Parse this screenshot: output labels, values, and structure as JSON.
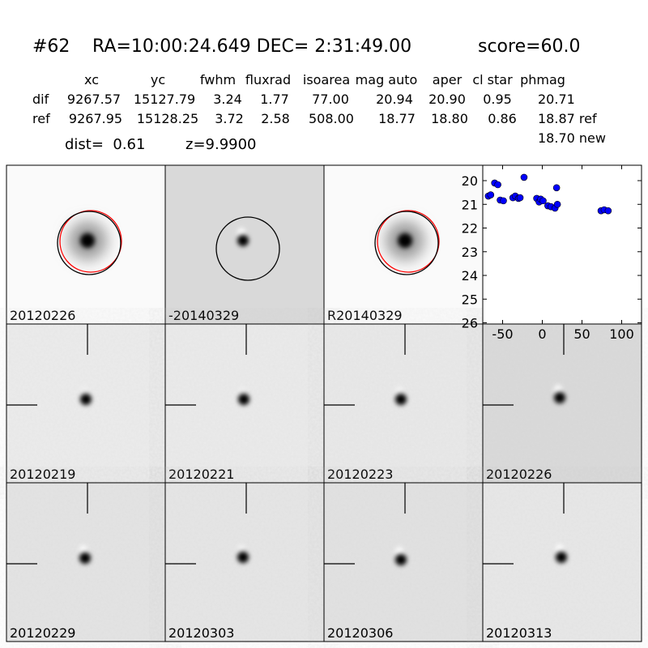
{
  "header": {
    "id": "#62",
    "coords": "RA=10:00:24.649 DEC= 2:31:49.00",
    "score": "score=60.0"
  },
  "table": {
    "columns": [
      "xc",
      "yc",
      "fwhm",
      "fluxrad",
      "isoarea",
      "mag auto",
      "aper",
      "cl star",
      "phmag"
    ],
    "rows": [
      [
        "dif",
        "9267.57",
        "15127.79",
        "3.24",
        "1.77",
        "77.00",
        "20.94",
        "20.90",
        "0.95",
        "20.71"
      ],
      [
        "ref",
        "9267.95",
        "15128.25",
        "3.72",
        "2.58",
        "508.00",
        "18.77",
        "18.80",
        "0.86",
        "18.87 ref"
      ]
    ],
    "extra": "18.70 new"
  },
  "dist": "dist=  0.61",
  "z": "z=9.9900",
  "stamps": [
    {
      "label": "20120226",
      "color": "#000000"
    },
    {
      "label": "-20140329",
      "color": "#000000"
    },
    {
      "label": "R20140329",
      "color": "#000000"
    },
    {
      "label": "20120219",
      "color": "#000000"
    },
    {
      "label": "20120221",
      "color": "#000000"
    },
    {
      "label": "20120223",
      "color": "#000000"
    },
    {
      "label": "20120226",
      "color": "#ff0000"
    },
    {
      "label": "20120229",
      "color": "#000000"
    },
    {
      "label": "20120303",
      "color": "#000000"
    },
    {
      "label": "20120306",
      "color": "#000000"
    },
    {
      "label": "20120313",
      "color": "#000000"
    }
  ],
  "chart_data": {
    "type": "scatter",
    "color": "#0000ff",
    "x": [
      -68,
      -65,
      -60,
      -56,
      -53,
      -49,
      -37,
      -34,
      -30,
      -28,
      -23,
      -7,
      -4,
      -2,
      1,
      7,
      11,
      16,
      19,
      18,
      74,
      78,
      83
    ],
    "values": [
      20.65,
      20.6,
      20.1,
      20.17,
      20.82,
      20.85,
      20.72,
      20.65,
      20.75,
      20.72,
      19.86,
      20.75,
      20.9,
      20.78,
      20.85,
      21.06,
      21.1,
      21.16,
      21.0,
      20.3,
      21.27,
      21.23,
      21.27
    ],
    "xlim": [
      -75,
      125
    ],
    "xticks": [
      -50,
      0,
      50,
      100
    ],
    "ylim": [
      26.05,
      19.35
    ],
    "yticks": [
      20,
      21,
      22,
      23,
      24,
      25,
      26
    ]
  }
}
